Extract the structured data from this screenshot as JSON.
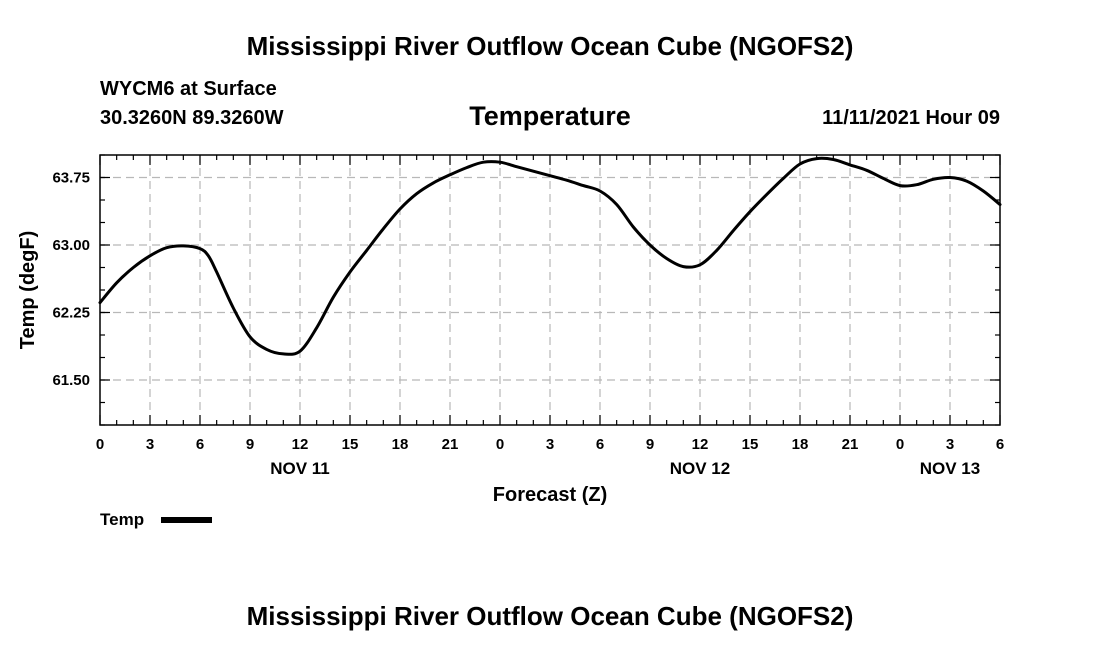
{
  "page_title": "Mississippi River Outflow Ocean Cube (NGOFS2)",
  "footer_title": "Mississippi River Outflow Ocean Cube (NGOFS2)",
  "station": "WYCM6 at Surface",
  "coords": "30.3260N  89.3260W",
  "datetime": "11/11/2021 Hour 09",
  "chart_data": {
    "type": "line",
    "title": "Temperature",
    "xlabel": "Forecast (Z)",
    "ylabel": "Temp (degF)",
    "xlim": [
      0,
      54
    ],
    "ylim": [
      61.0,
      64.0
    ],
    "x_ticks": [
      0,
      3,
      6,
      9,
      12,
      15,
      18,
      21,
      24,
      27,
      30,
      33,
      36,
      39,
      42,
      45,
      48,
      51,
      54
    ],
    "x_tick_labels": [
      "0",
      "3",
      "6",
      "9",
      "12",
      "15",
      "18",
      "21",
      "0",
      "3",
      "6",
      "9",
      "12",
      "15",
      "18",
      "21",
      "0",
      "3",
      "6"
    ],
    "y_ticks": [
      61.5,
      62.25,
      63.0,
      63.75
    ],
    "y_tick_labels": [
      "61.50",
      "62.25",
      "63.00",
      "63.75"
    ],
    "date_labels": [
      {
        "x": 12,
        "label": "NOV 11"
      },
      {
        "x": 36,
        "label": "NOV 12"
      },
      {
        "x": 51,
        "label": "NOV 13"
      }
    ],
    "grid": true,
    "legend": {
      "position": "bottom-left",
      "entries": [
        "Temp"
      ]
    },
    "series": [
      {
        "name": "Temp",
        "color": "#000000",
        "x": [
          0,
          1,
          2,
          3,
          4,
          5,
          6,
          6.5,
          7,
          8,
          9,
          10,
          11,
          12,
          13,
          14,
          15,
          16,
          17,
          18,
          19,
          20,
          21,
          22,
          23,
          24,
          25,
          26,
          27,
          28,
          29,
          30,
          31,
          32,
          33,
          34,
          35,
          36,
          37,
          38,
          39,
          40,
          41,
          42,
          43,
          44,
          45,
          46,
          47,
          48,
          49,
          50,
          51,
          52,
          53,
          54
        ],
        "values": [
          62.36,
          62.58,
          62.75,
          62.88,
          62.97,
          62.99,
          62.96,
          62.88,
          62.7,
          62.3,
          61.98,
          61.84,
          61.79,
          61.82,
          62.08,
          62.42,
          62.7,
          62.94,
          63.18,
          63.4,
          63.57,
          63.69,
          63.78,
          63.86,
          63.92,
          63.92,
          63.87,
          63.82,
          63.77,
          63.72,
          63.66,
          63.6,
          63.45,
          63.2,
          63.0,
          62.85,
          62.76,
          62.78,
          62.94,
          63.16,
          63.37,
          63.56,
          63.74,
          63.9,
          63.96,
          63.95,
          63.89,
          63.83,
          63.74,
          63.66,
          63.67,
          63.73,
          63.75,
          63.71,
          63.6,
          63.45
        ]
      }
    ]
  }
}
